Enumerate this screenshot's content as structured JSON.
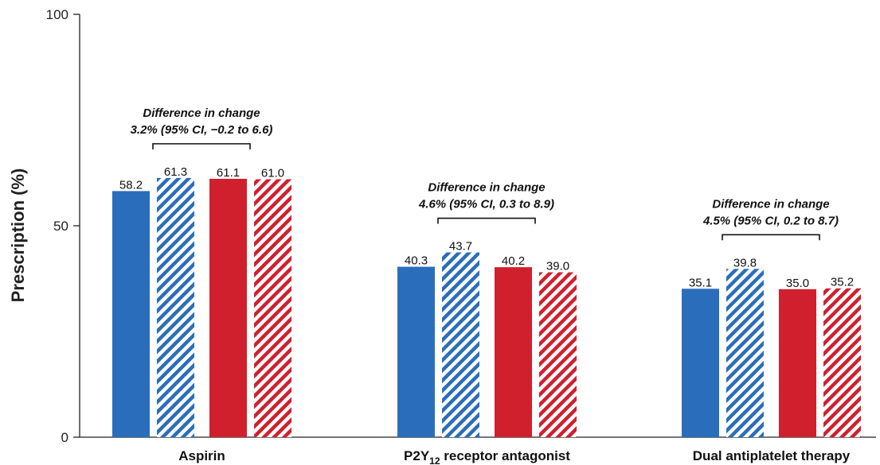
{
  "chart_data": {
    "type": "bar",
    "ylabel": "Prescription (%)",
    "ylim": [
      0,
      100
    ],
    "yticks": [
      "0",
      "50",
      "100"
    ],
    "categories": [
      {
        "pre": "Aspirin",
        "main": "",
        "sub": "",
        "post": ""
      },
      {
        "pre": "",
        "main": "P2Y",
        "sub": "12",
        "post": " receptor antagonist"
      },
      {
        "pre": "Dual antiplatelet therapy",
        "main": "",
        "sub": "",
        "post": ""
      }
    ],
    "series": [
      {
        "color": "#2a6ebb",
        "pattern": "solid",
        "values": [
          58.2,
          40.3,
          35.1
        ],
        "labels": [
          "58.2",
          "40.3",
          "35.1"
        ]
      },
      {
        "color": "#2a6ebb",
        "pattern": "hatched",
        "values": [
          61.3,
          43.7,
          39.8
        ],
        "labels": [
          "61.3",
          "43.7",
          "39.8"
        ]
      },
      {
        "color": "#d0202e",
        "pattern": "solid",
        "values": [
          61.1,
          40.2,
          35.0
        ],
        "labels": [
          "61.1",
          "40.2",
          "35.0"
        ]
      },
      {
        "color": "#d0202e",
        "pattern": "hatched",
        "values": [
          61.0,
          39.0,
          35.2
        ],
        "labels": [
          "61.0",
          "39.0",
          "35.2"
        ]
      }
    ],
    "annotations": [
      {
        "line1": "Difference in change",
        "line2": "3.2% (95% CI, −0.2 to 6.6)"
      },
      {
        "line1": "Difference in change",
        "line2": "4.6% (95% CI, 0.3 to 8.9)"
      },
      {
        "line1": "Difference in change",
        "line2": "4.5% (95% CI, 0.2 to 8.7)"
      }
    ]
  }
}
